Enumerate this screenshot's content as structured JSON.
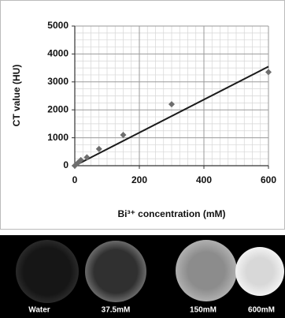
{
  "chart_data": {
    "type": "scatter",
    "x_label": "Bi³⁺ concentration (mM)",
    "y_label": "CT value (HU)",
    "xlim": [
      0,
      600
    ],
    "xticks": [
      0,
      200,
      400,
      600
    ],
    "ylim": [
      0,
      5000
    ],
    "yticks": [
      0,
      1000,
      2000,
      3000,
      4000,
      5000
    ],
    "grid": true,
    "series": [
      {
        "color": "#6e6e6e",
        "x": [
          0,
          9.4,
          18.75,
          37.5,
          75,
          150,
          300,
          600
        ],
        "values": [
          0,
          100,
          200,
          300,
          600,
          1100,
          2200,
          3350
        ]
      }
    ],
    "trendline": {
      "color": "#1a1a1a",
      "x": [
        0,
        600
      ],
      "values": [
        0,
        3550
      ]
    }
  },
  "image_panel": {
    "labels": [
      "Water",
      "37.5mM",
      "150mM",
      "600mM"
    ]
  }
}
